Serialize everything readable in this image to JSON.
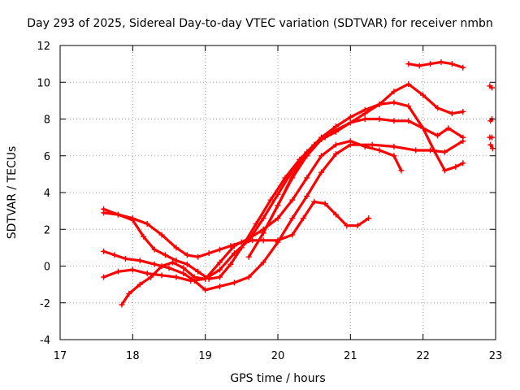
{
  "chart_data": {
    "type": "scatter",
    "title": "Day 293 of 2025, Sidereal Day-to-day VTEC variation (SDTVAR) for receiver nmbn",
    "xlabel": "GPS time / hours",
    "ylabel": "SDTVAR / TECUs",
    "xlim": [
      17,
      23
    ],
    "ylim": [
      -4,
      12
    ],
    "xticks": [
      "17",
      "18",
      "19",
      "20",
      "21",
      "22",
      "23"
    ],
    "yticks": [
      "-4",
      "-2",
      "0",
      "2",
      "4",
      "6",
      "8",
      "10",
      "12"
    ],
    "grid": true,
    "marker": "plus",
    "color": "#ff0000",
    "series": [
      {
        "name": "s1",
        "x": [
          17.6,
          17.8,
          18.0,
          18.15,
          18.3,
          18.45,
          18.6,
          18.75,
          18.9,
          19.05,
          19.2,
          19.35,
          19.5,
          19.7,
          19.9,
          20.1,
          20.3,
          20.5,
          20.65
        ],
        "y": [
          2.9,
          2.8,
          2.5,
          1.6,
          0.9,
          0.6,
          0.3,
          0.1,
          -0.3,
          -0.7,
          -0.6,
          0.1,
          1.0,
          2.3,
          3.6,
          4.8,
          5.8,
          6.6,
          7.0
        ]
      },
      {
        "name": "s2",
        "x": [
          17.6,
          17.8,
          18.0,
          18.2,
          18.4,
          18.6,
          18.75,
          18.9,
          19.05,
          19.2,
          19.35,
          19.5,
          19.65,
          19.8,
          20.0,
          20.2,
          20.35,
          20.5,
          20.65,
          20.8,
          20.95,
          21.1,
          21.25
        ],
        "y": [
          3.1,
          2.8,
          2.6,
          2.3,
          1.7,
          1.0,
          0.6,
          0.5,
          0.7,
          0.9,
          1.1,
          1.3,
          1.4,
          1.4,
          1.4,
          1.7,
          2.6,
          3.5,
          3.4,
          2.8,
          2.2,
          2.2,
          2.6
        ]
      },
      {
        "name": "s3",
        "x": [
          17.6,
          17.75,
          17.9,
          18.1,
          18.3,
          18.5,
          18.7,
          18.85,
          19.0,
          19.2,
          19.4,
          19.6,
          19.8,
          20.0,
          20.2,
          20.4,
          20.6,
          20.8,
          21.0,
          21.3,
          21.6,
          21.9,
          22.1,
          22.3,
          22.55
        ],
        "y": [
          0.8,
          0.6,
          0.4,
          0.3,
          0.1,
          -0.1,
          -0.4,
          -0.8,
          -1.3,
          -1.1,
          -0.9,
          -0.6,
          0.2,
          1.3,
          2.6,
          3.8,
          5.1,
          6.1,
          6.6,
          6.6,
          6.5,
          6.3,
          6.3,
          6.2,
          6.8
        ]
      },
      {
        "name": "s4",
        "x": [
          17.6,
          17.8,
          18.0,
          18.2,
          18.4,
          18.6,
          18.8,
          19.0,
          19.2,
          19.4,
          19.6,
          19.8,
          20.0,
          20.2,
          20.4,
          20.6,
          20.8,
          21.0,
          21.2,
          21.4,
          21.6,
          21.7
        ],
        "y": [
          -0.6,
          -0.3,
          -0.2,
          -0.4,
          -0.5,
          -0.6,
          -0.8,
          -0.7,
          0.2,
          1.1,
          1.5,
          2.0,
          2.6,
          3.6,
          4.8,
          6.0,
          6.6,
          6.8,
          6.5,
          6.3,
          6.0,
          5.2
        ]
      },
      {
        "name": "s5",
        "x": [
          17.85,
          17.95,
          18.1,
          18.25,
          18.4,
          18.55,
          18.7,
          18.85,
          19.0,
          19.2,
          19.4,
          19.6,
          19.8,
          20.0,
          20.2,
          20.4,
          20.6,
          20.8,
          21.0,
          21.2,
          21.4,
          21.6,
          21.8,
          22.0,
          22.2,
          22.35,
          22.55
        ],
        "y": [
          -2.1,
          -1.5,
          -1.0,
          -0.6,
          0.0,
          0.2,
          -0.1,
          -0.6,
          -0.7,
          -0.2,
          0.7,
          1.4,
          2.6,
          3.9,
          5.2,
          6.2,
          6.9,
          7.3,
          7.8,
          8.0,
          8.0,
          7.9,
          7.9,
          7.5,
          7.1,
          7.5,
          7.0
        ]
      },
      {
        "name": "s6",
        "x": [
          19.6,
          19.8,
          20.0,
          20.2,
          20.4,
          20.6,
          20.8,
          21.0,
          21.2,
          21.4,
          21.6,
          21.8,
          22.0,
          22.2,
          22.4,
          22.55
        ],
        "y": [
          0.5,
          1.8,
          3.3,
          4.8,
          6.0,
          6.9,
          7.4,
          7.8,
          8.3,
          8.8,
          9.5,
          9.9,
          9.3,
          8.6,
          8.3,
          8.4
        ]
      },
      {
        "name": "s7",
        "x": [
          19.8,
          20.0,
          20.2,
          20.4,
          20.6,
          20.8,
          21.0,
          21.2,
          21.4,
          21.6,
          21.8,
          22.0,
          22.15,
          22.3,
          22.45,
          22.55
        ],
        "y": [
          1.8,
          3.3,
          4.9,
          6.2,
          7.0,
          7.6,
          8.1,
          8.5,
          8.8,
          8.9,
          8.7,
          7.5,
          6.3,
          5.2,
          5.4,
          5.6
        ]
      },
      {
        "name": "s8",
        "x": [
          21.8,
          21.95,
          22.1,
          22.25,
          22.4,
          22.55
        ],
        "y": [
          11.0,
          10.9,
          11.0,
          11.1,
          11.0,
          10.8
        ]
      },
      {
        "name": "s9",
        "x": [
          22.92,
          22.95
        ],
        "y": [
          9.8,
          9.7
        ]
      },
      {
        "name": "s10",
        "x": [
          22.93,
          22.95
        ],
        "y": [
          7.9,
          8.0
        ]
      },
      {
        "name": "s11",
        "x": [
          22.92,
          22.95
        ],
        "y": [
          7.0,
          7.0
        ]
      },
      {
        "name": "s12",
        "x": [
          22.93,
          22.96
        ],
        "y": [
          6.6,
          6.4
        ]
      }
    ]
  }
}
